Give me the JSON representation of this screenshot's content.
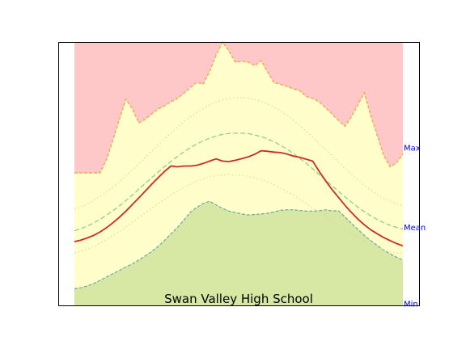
{
  "chart_data": {
    "type": "area",
    "title": "Swan Valley High School",
    "xlabel": "",
    "ylabel": "",
    "grid": false,
    "legend": "none",
    "x": [
      1,
      2,
      3,
      4,
      5,
      6,
      7,
      8,
      9,
      10,
      11,
      12,
      13,
      14,
      15,
      16,
      17,
      18,
      19,
      20,
      21,
      22,
      23,
      24,
      25,
      26,
      27,
      28,
      29,
      30,
      31,
      32,
      33,
      34,
      35,
      36,
      37,
      38,
      39,
      40,
      41,
      42,
      43,
      44,
      45,
      46,
      47,
      48,
      49,
      50,
      51,
      52
    ],
    "ylim": [
      0,
      100
    ],
    "side_labels": [
      {
        "text": "Max",
        "value": 59.6
      },
      {
        "text": "Mean",
        "value": 29.5
      },
      {
        "text": "Min",
        "value": 0.5
      }
    ],
    "series": [
      {
        "values": [
          50.3,
          50.3,
          50.3,
          50.3,
          50.3,
          55.5,
          63.0,
          70.8,
          78.3,
          74.5,
          69.3,
          70.6,
          72.7,
          74.5,
          75.8,
          77.3,
          78.6,
          80.5,
          82.7,
          84.7,
          84.0,
          89.0,
          95.0,
          100,
          96.5,
          92.3,
          92.7,
          92.3,
          91.0,
          92.9,
          88.6,
          84.5,
          84.0,
          83.1,
          82.2,
          81.5,
          79.3,
          78.6,
          77.3,
          75.0,
          72.7,
          70.2,
          68.0,
          71.6,
          76.1,
          80.7,
          72.2,
          64.7,
          57.1,
          52.6,
          54.1,
          57.4
        ],
        "color": "#f6a650",
        "fill": "#ffc8c8"
      },
      {
        "values": [
          50.3,
          50.3,
          50.3,
          50.3,
          50.3,
          55.5,
          63.0,
          70.8,
          78.3,
          74.5,
          69.3,
          70.6,
          72.7,
          74.5,
          75.8,
          77.3,
          78.6,
          80.5,
          82.7,
          84.7,
          84.0,
          89.0,
          95.0,
          100,
          96.5,
          92.3,
          92.7,
          92.3,
          91.0,
          92.9,
          88.6,
          84.5,
          84.0,
          83.1,
          82.2,
          81.5,
          79.3,
          78.6,
          77.3,
          75.0,
          72.7,
          70.2,
          68.0,
          71.6,
          76.1,
          80.7,
          72.2,
          64.7,
          57.1,
          52.6,
          54.1,
          57.4
        ],
        "color": "#f6a650",
        "fill": "#ffffcc"
      },
      {
        "values": [
          6.3,
          6.7,
          7.4,
          8.3,
          9.5,
          10.8,
          12.1,
          13.3,
          14.6,
          15.8,
          17.2,
          18.8,
          20.5,
          22.4,
          24.7,
          27.2,
          29.6,
          32.4,
          35.4,
          37.2,
          38.7,
          39.5,
          38.2,
          36.8,
          35.8,
          35.3,
          34.7,
          34.3,
          34.5,
          34.7,
          35.0,
          35.5,
          36.1,
          36.3,
          36.3,
          36.0,
          35.8,
          35.8,
          35.9,
          36.3,
          35.9,
          35.9,
          33.6,
          31.2,
          28.9,
          26.6,
          24.6,
          22.8,
          21.0,
          19.6,
          18.3,
          17.2
        ],
        "color": "#6aa8a0",
        "fill": "#d6e8a4"
      },
      {
        "values": [
          36.4,
          37.4,
          38.5,
          39.9,
          41.4,
          43.1,
          44.9,
          46.9,
          49.1,
          51.4,
          53.7,
          56.1,
          58.5,
          60.9,
          63.3,
          65.5,
          67.7,
          69.7,
          71.6,
          73.3,
          74.8,
          76.1,
          77.2,
          78.0,
          78.6,
          78.9,
          78.9,
          78.7,
          78.2,
          77.5,
          76.5,
          75.2,
          73.8,
          72.1,
          70.3,
          68.3,
          66.1,
          63.9,
          61.5,
          59.2,
          56.8,
          54.4,
          52.0,
          49.8,
          47.6,
          45.6,
          43.8,
          42.1,
          40.7,
          39.5,
          38.5,
          37.8
        ],
        "color": "#d9d98a",
        "dash": "dotted"
      },
      {
        "values": [
          28.3,
          29.1,
          30.1,
          31.3,
          32.7,
          34.3,
          36.0,
          37.8,
          39.8,
          41.9,
          44.1,
          46.3,
          48.5,
          50.6,
          52.7,
          54.7,
          56.6,
          58.3,
          59.9,
          61.3,
          62.5,
          63.5,
          64.3,
          64.9,
          65.3,
          65.4,
          65.4,
          65.2,
          64.7,
          64.1,
          63.2,
          62.1,
          60.8,
          59.3,
          57.6,
          55.8,
          53.9,
          51.8,
          49.7,
          47.6,
          45.4,
          43.3,
          41.2,
          39.2,
          37.3,
          35.6,
          34.0,
          32.6,
          31.4,
          30.4,
          29.6,
          29.0
        ],
        "color": "#8ccc7a",
        "dash": "dashed"
      },
      {
        "values": [
          19.9,
          20.5,
          21.3,
          22.3,
          23.6,
          25.0,
          26.5,
          28.1,
          29.8,
          31.5,
          33.3,
          35.1,
          36.9,
          38.6,
          40.3,
          41.9,
          43.4,
          44.8,
          46.1,
          47.2,
          48.1,
          48.8,
          49.3,
          49.6,
          49.7,
          49.6,
          49.4,
          49.0,
          48.4,
          47.7,
          46.8,
          45.8,
          44.6,
          43.2,
          41.8,
          40.3,
          38.7,
          37.0,
          35.3,
          33.6,
          31.9,
          30.2,
          28.6,
          27.0,
          25.6,
          24.3,
          23.1,
          22.0,
          21.1,
          20.4,
          19.9,
          19.6
        ],
        "color": "#d9d98a",
        "dash": "dotted"
      },
      {
        "values": [
          24.2,
          24.8,
          25.6,
          26.6,
          27.9,
          29.5,
          31.4,
          33.5,
          35.8,
          38.3,
          40.8,
          43.4,
          46.0,
          48.5,
          50.9,
          52.9,
          52.6,
          52.9,
          52.9,
          53.2,
          53.9,
          54.8,
          55.6,
          54.8,
          54.6,
          55.1,
          55.7,
          56.4,
          57.4,
          58.7,
          58.5,
          58.2,
          58.0,
          57.5,
          56.7,
          56.2,
          55.5,
          54.8,
          50.9,
          47.3,
          44.0,
          41.0,
          38.0,
          35.3,
          32.8,
          30.6,
          28.7,
          27.2,
          25.8,
          24.6,
          23.5,
          22.6
        ],
        "color": "#cc2a2a",
        "dash": "solid"
      }
    ]
  }
}
